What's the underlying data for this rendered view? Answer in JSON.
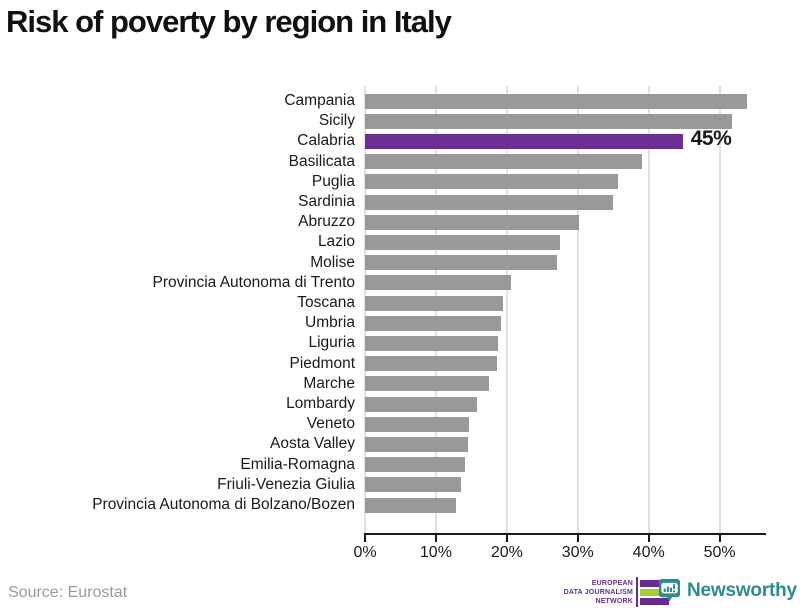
{
  "title": "Risk of poverty by region in Italy",
  "annotation": {
    "text": "45%",
    "region": "Calabria"
  },
  "colors": {
    "bar": "#999999",
    "highlight": "#6d2e91",
    "gridline": "#e2e2e2",
    "axis": "#1a1a1a",
    "title_text": "#111111",
    "source_text": "#9b9b9b",
    "edjn_purple": "#662d91",
    "edjn_green": "#a6ce39",
    "newsworthy_teal": "#2e8c8c"
  },
  "chart_data": {
    "type": "bar",
    "orientation": "horizontal",
    "title": "Risk of poverty by region in Italy",
    "xlabel": "",
    "ylabel": "",
    "categories": [
      "Campania",
      "Sicily",
      "Calabria",
      "Basilicata",
      "Puglia",
      "Sardinia",
      "Abruzzo",
      "Lazio",
      "Molise",
      "Provincia Autonoma di Trento",
      "Toscana",
      "Umbria",
      "Liguria",
      "Piedmont",
      "Marche",
      "Lombardy",
      "Veneto",
      "Aosta Valley",
      "Emilia-Romagna",
      "Friuli-Venezia Giulia",
      "Provincia Autonoma di Bolzano/Bozen"
    ],
    "values": [
      53.8,
      51.8,
      44.8,
      39.0,
      35.7,
      34.9,
      30.2,
      27.5,
      27.1,
      20.6,
      19.4,
      19.2,
      18.8,
      18.6,
      17.5,
      15.8,
      14.7,
      14.5,
      14.1,
      13.6,
      12.9
    ],
    "highlight": {
      "category": "Calabria",
      "value": 44.8,
      "label": "45%",
      "color": "#6d2e91"
    },
    "x_ticks": [
      "0%",
      "10%",
      "20%",
      "30%",
      "40%",
      "50%"
    ],
    "x_tick_values": [
      0,
      10,
      20,
      30,
      40,
      50
    ],
    "xlim": [
      0,
      56.4
    ],
    "grid": "vertical",
    "legend": "none"
  },
  "footer": {
    "source": "Source: Eurostat",
    "edjn_logo": {
      "lines": [
        "EUROPEAN",
        "DATA JOURNALISM",
        "NETWORK"
      ]
    },
    "newsworthy_logo": {
      "text": "Newsworthy"
    }
  }
}
